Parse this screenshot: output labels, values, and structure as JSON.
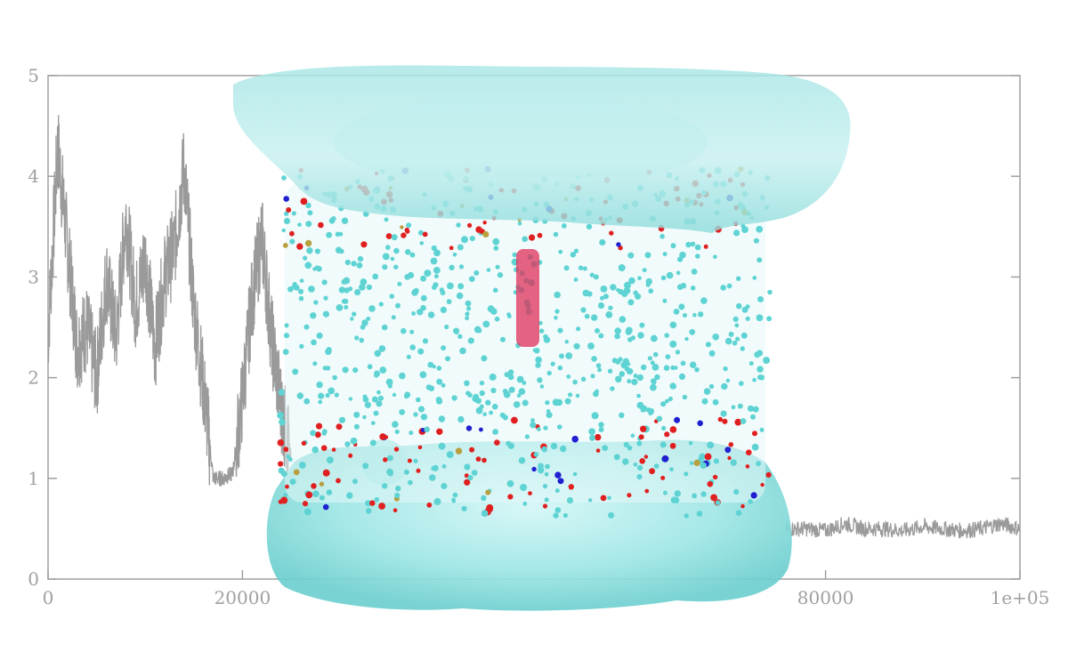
{
  "chart_data": {
    "type": "line",
    "title": "",
    "xlabel": "",
    "ylabel": "",
    "xlim": [
      0,
      100000
    ],
    "ylim": [
      0,
      5
    ],
    "xticks": [
      {
        "value": 0,
        "label": "0"
      },
      {
        "value": 20000,
        "label": "20000"
      },
      {
        "value": 80000,
        "label": "80000"
      },
      {
        "value": 100000,
        "label": "1e+05"
      }
    ],
    "yticks": [
      {
        "value": 0,
        "label": "0"
      },
      {
        "value": 1,
        "label": "1"
      },
      {
        "value": 2,
        "label": "2"
      },
      {
        "value": 3,
        "label": "3"
      },
      {
        "value": 4,
        "label": "4"
      },
      {
        "value": 5,
        "label": "5"
      }
    ],
    "grid": false,
    "legend": "none",
    "series": [
      {
        "color": "#9a9a9a",
        "x": [
          0,
          1000,
          2000,
          3000,
          4000,
          5000,
          6000,
          7000,
          8000,
          9000,
          10000,
          11000,
          12000,
          13000,
          14000,
          15000,
          16000,
          17000,
          18000,
          19000,
          20000,
          21000,
          22000,
          23000,
          24000,
          25000,
          76000,
          78000,
          80000,
          82000,
          84000,
          86000,
          88000,
          90000,
          92000,
          94000,
          96000,
          98000,
          100000
        ],
        "values": [
          2.4,
          4.3,
          3.3,
          2.3,
          2.5,
          2.0,
          3.0,
          2.4,
          3.6,
          2.7,
          3.2,
          2.3,
          3.0,
          3.3,
          4.1,
          2.7,
          1.9,
          1.0,
          1.0,
          1.05,
          1.8,
          2.8,
          3.4,
          2.4,
          1.7,
          1.2,
          0.5,
          0.5,
          0.48,
          0.55,
          0.5,
          0.5,
          0.48,
          0.52,
          0.5,
          0.48,
          0.5,
          0.55,
          0.5
        ]
      }
    ]
  },
  "overlay": {
    "water_color": "#8fe0e0",
    "lipid_color": "#5fd3d3",
    "oxygen_color": "#e02020",
    "nitrogen_color": "#2020d0",
    "phosphorus_color": "#b8a040",
    "channel_color": "#e0305a"
  }
}
